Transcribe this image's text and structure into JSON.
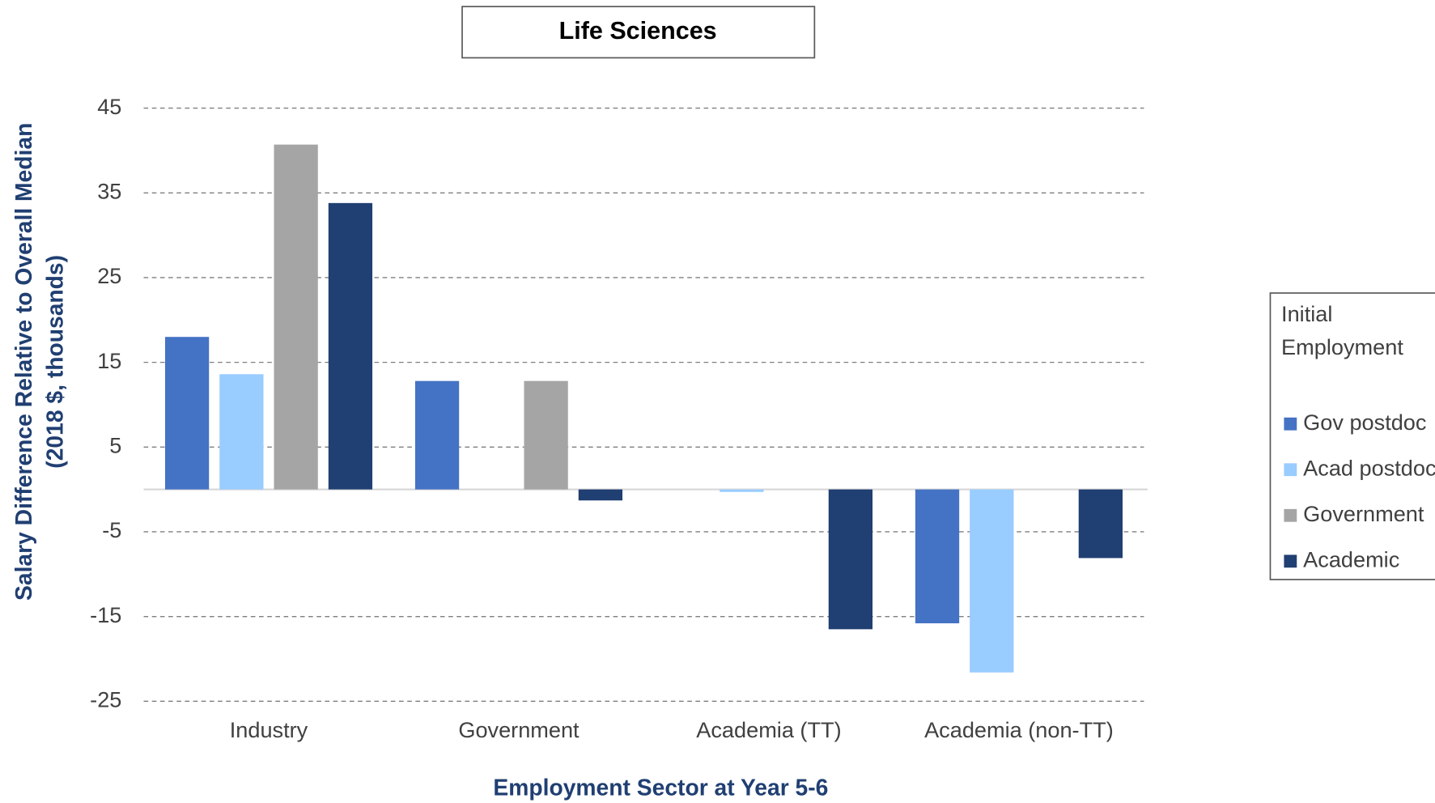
{
  "chart_data": {
    "type": "bar",
    "title": "Life Sciences",
    "x_label": "Employment Sector at Year 5-6",
    "y_label": [
      "Salary Difference Relative to Overall Median",
      "(2018 $, thousands)"
    ],
    "legend_title": "Initial Employment",
    "legend": "right",
    "grid": true,
    "categories": [
      "Industry",
      "Government",
      "Academia (TT)",
      "Academia (non-TT)"
    ],
    "series": [
      {
        "name": "Gov postdoc",
        "color": "#4472c4",
        "values": [
          18.0,
          12.8,
          null,
          -15.8
        ]
      },
      {
        "name": "Acad postdoc",
        "color": "#99ccff",
        "values": [
          13.6,
          null,
          -0.3,
          -21.6
        ]
      },
      {
        "name": "Government",
        "color": "#a5a5a5",
        "values": [
          40.7,
          12.8,
          null,
          null
        ]
      },
      {
        "name": "Academic",
        "color": "#203f72",
        "values": [
          33.8,
          -1.3,
          -16.5,
          -8.1
        ]
      }
    ],
    "ylim": [
      -25,
      45
    ],
    "yticks": [
      45,
      35,
      25,
      15,
      5,
      -5,
      -15,
      -25
    ]
  }
}
